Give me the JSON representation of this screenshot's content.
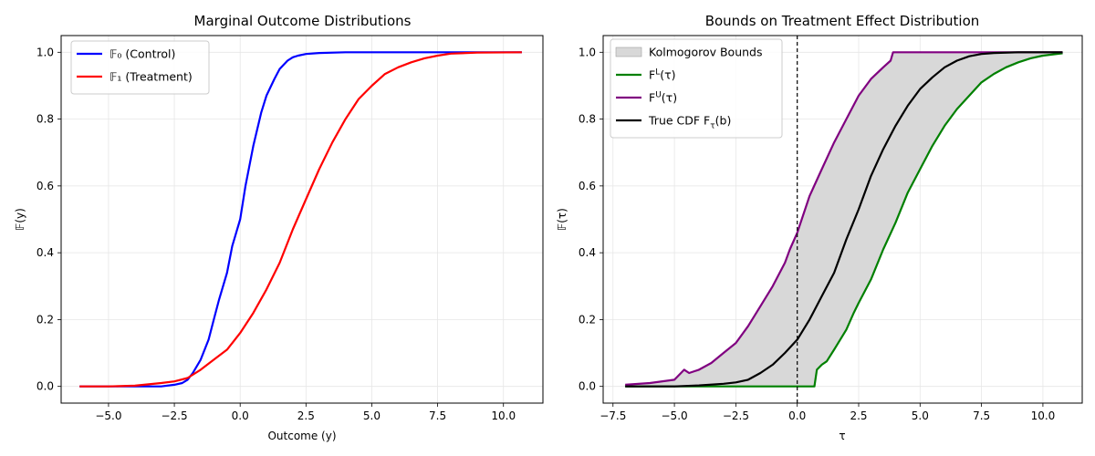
{
  "chart_data": [
    {
      "type": "line",
      "title": "Marginal Outcome Distributions",
      "xlabel": "Outcome (y)",
      "ylabel": "𝔽(y)",
      "xlim": [
        -6.8,
        11.5
      ],
      "ylim": [
        -0.05,
        1.05
      ],
      "xticks": [
        -5.0,
        -2.5,
        0.0,
        2.5,
        5.0,
        7.5,
        10.0
      ],
      "xtick_labels": [
        "−5.0",
        "−2.5",
        "0.0",
        "2.5",
        "5.0",
        "7.5",
        "10.0"
      ],
      "yticks": [
        0.0,
        0.2,
        0.4,
        0.6,
        0.8,
        1.0
      ],
      "ytick_labels": [
        "0.0",
        "0.2",
        "0.4",
        "0.6",
        "0.8",
        "1.0"
      ],
      "grid": true,
      "legend_position": "top-left",
      "series": [
        {
          "name": "𝔽₀ (Control)",
          "color": "#0000ff",
          "x": [
            -6.1,
            -5.0,
            -4.0,
            -3.0,
            -2.5,
            -2.2,
            -2.0,
            -1.8,
            -1.5,
            -1.2,
            -1.0,
            -0.8,
            -0.5,
            -0.3,
            0.0,
            0.2,
            0.5,
            0.8,
            1.0,
            1.3,
            1.5,
            1.8,
            2.0,
            2.2,
            2.5,
            3.0,
            4.0,
            5.0,
            8.0,
            10.7
          ],
          "y": [
            0.0,
            0.0,
            0.0,
            0.0,
            0.005,
            0.01,
            0.02,
            0.04,
            0.08,
            0.14,
            0.2,
            0.26,
            0.34,
            0.42,
            0.5,
            0.6,
            0.72,
            0.82,
            0.87,
            0.92,
            0.95,
            0.975,
            0.985,
            0.99,
            0.995,
            0.998,
            1.0,
            1.0,
            1.0,
            1.0
          ]
        },
        {
          "name": "𝔽₁ (Treatment)",
          "color": "#ff0000",
          "x": [
            -6.1,
            -5.0,
            -4.0,
            -3.0,
            -2.5,
            -2.0,
            -1.5,
            -1.0,
            -0.5,
            0.0,
            0.5,
            1.0,
            1.5,
            2.0,
            2.5,
            3.0,
            3.5,
            4.0,
            4.5,
            5.0,
            5.5,
            6.0,
            6.5,
            7.0,
            7.5,
            8.0,
            9.0,
            10.7
          ],
          "y": [
            0.0,
            0.0,
            0.002,
            0.01,
            0.015,
            0.025,
            0.05,
            0.08,
            0.11,
            0.16,
            0.22,
            0.29,
            0.37,
            0.47,
            0.56,
            0.65,
            0.73,
            0.8,
            0.86,
            0.9,
            0.935,
            0.955,
            0.97,
            0.982,
            0.99,
            0.996,
            0.999,
            1.0
          ]
        }
      ]
    },
    {
      "type": "line",
      "title": "Bounds on Treatment Effect Distribution",
      "xlabel": "τ",
      "ylabel": "𝔽(τ)",
      "xlim": [
        -7.9,
        11.6
      ],
      "ylim": [
        -0.05,
        1.05
      ],
      "xticks": [
        -7.5,
        -5.0,
        -2.5,
        0.0,
        2.5,
        5.0,
        7.5,
        10.0
      ],
      "xtick_labels": [
        "−7.5",
        "−5.0",
        "−2.5",
        "0.0",
        "2.5",
        "5.0",
        "7.5",
        "10.0"
      ],
      "yticks": [
        0.0,
        0.2,
        0.4,
        0.6,
        0.8,
        1.0
      ],
      "ytick_labels": [
        "0.0",
        "0.2",
        "0.4",
        "0.6",
        "0.8",
        "1.0"
      ],
      "grid": true,
      "legend_position": "top-left",
      "vline": {
        "x": 0.0,
        "style": "dashed",
        "color": "#000000"
      },
      "fill": {
        "name": "Kolmogorov Bounds",
        "color": "#d8d8d8",
        "edge": "#a0a0a0",
        "between": [
          "F^L(τ)",
          "F^U(τ)"
        ]
      },
      "series": [
        {
          "name": "F^L(τ)",
          "color": "#008000",
          "x": [
            -7.0,
            -5.0,
            -2.5,
            0.0,
            0.7,
            0.8,
            1.0,
            1.2,
            1.5,
            2.0,
            2.3,
            2.5,
            3.0,
            3.5,
            4.0,
            4.5,
            5.0,
            5.5,
            6.0,
            6.5,
            7.0,
            7.5,
            8.0,
            8.5,
            9.0,
            9.5,
            10.0,
            10.8
          ],
          "y": [
            0.0,
            0.0,
            0.0,
            0.0,
            0.0,
            0.05,
            0.065,
            0.075,
            0.11,
            0.17,
            0.22,
            0.25,
            0.32,
            0.41,
            0.49,
            0.58,
            0.65,
            0.72,
            0.78,
            0.83,
            0.87,
            0.91,
            0.935,
            0.955,
            0.97,
            0.982,
            0.99,
            0.997
          ]
        },
        {
          "name": "F^U(τ)",
          "color": "#800080",
          "x": [
            -7.0,
            -6.0,
            -5.0,
            -4.6,
            -4.4,
            -4.0,
            -3.5,
            -3.0,
            -2.5,
            -2.0,
            -1.5,
            -1.0,
            -0.5,
            -0.3,
            0.0,
            0.5,
            1.0,
            1.5,
            2.0,
            2.5,
            3.0,
            3.5,
            3.8,
            3.9,
            4.5,
            6.0,
            8.0,
            10.8
          ],
          "y": [
            0.005,
            0.01,
            0.02,
            0.05,
            0.04,
            0.05,
            0.07,
            0.1,
            0.13,
            0.18,
            0.24,
            0.3,
            0.37,
            0.41,
            0.46,
            0.57,
            0.65,
            0.73,
            0.8,
            0.87,
            0.92,
            0.955,
            0.975,
            1.0,
            1.0,
            1.0,
            1.0,
            1.0
          ]
        },
        {
          "name": "True CDF F_τ(b)",
          "color": "#000000",
          "x": [
            -7.0,
            -5.0,
            -4.0,
            -3.0,
            -2.5,
            -2.0,
            -1.5,
            -1.0,
            -0.5,
            0.0,
            0.5,
            1.0,
            1.5,
            2.0,
            2.5,
            3.0,
            3.5,
            4.0,
            4.5,
            5.0,
            5.5,
            6.0,
            6.5,
            7.0,
            7.5,
            8.0,
            9.0,
            10.8
          ],
          "y": [
            0.0,
            0.0,
            0.003,
            0.008,
            0.012,
            0.02,
            0.04,
            0.065,
            0.1,
            0.14,
            0.2,
            0.27,
            0.34,
            0.44,
            0.53,
            0.63,
            0.71,
            0.78,
            0.84,
            0.89,
            0.925,
            0.955,
            0.975,
            0.988,
            0.995,
            0.998,
            1.0,
            1.0
          ]
        }
      ]
    }
  ]
}
